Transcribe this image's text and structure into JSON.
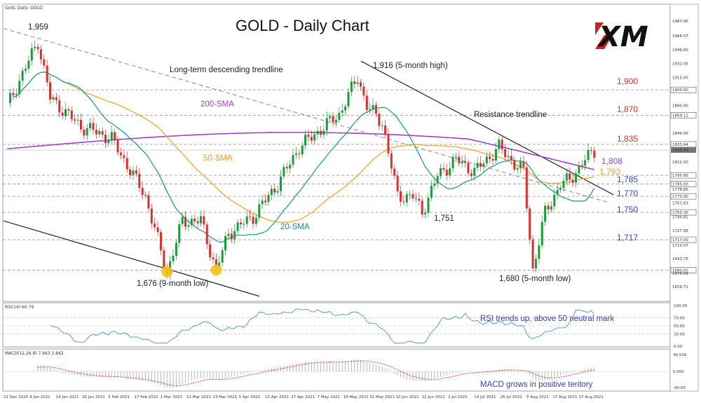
{
  "header": {
    "symbol_label": "Gold, Daily: GOLD",
    "title": "GOLD - Daily Chart",
    "logo_text": "XM"
  },
  "colors": {
    "bull": "#1d9a3c",
    "bear": "#d6312e",
    "sma20": "#2a9a96",
    "sma50": "#f0a733",
    "sma200": "#a040c8",
    "res_level": "#e0302a",
    "sup_level": "#2f47c8",
    "rsi_line": "#4a8fd8",
    "macd_hist": "#b8b8b8",
    "macd_signal": "#d63030"
  },
  "chart_data": [
    {
      "type": "candlestick",
      "title": "GOLD - Daily Chart",
      "y_ticks": [
        "1983.95",
        "1966.07",
        "1949.00",
        "1932.05",
        "1915.00",
        "1900.00",
        "1880.90",
        "1869.11",
        "1846.90",
        "1833.44",
        "1826.50",
        "1812.00",
        "1795.66",
        "1785.00",
        "1778.85",
        "1770.00",
        "1761.83",
        "1750.36",
        "1744.81",
        "1727.95",
        "1717.00",
        "1710.07",
        "1693.75",
        "1680.00",
        "1676.09",
        "1659.71"
      ],
      "ylim": [
        1646,
        1996
      ],
      "current_price_label": "1826.50",
      "x_labels": [
        "21 Dec 2020",
        "4 Jan 2021",
        "14 Jan 2021",
        "26 Jan 2021",
        "5 Feb 2021",
        "17 Feb 2021",
        "1 Mar 2021",
        "11 Mar 2021",
        "23 Mar 2021",
        "5 Apr 2021",
        "15 Apr 2021",
        "27 Apr 2021",
        "7 May 2021",
        "19 May 2021",
        "31 May 2021",
        "10 Jun 2021",
        "22 Jun 2021",
        "2 Jul 2021",
        "14 Jul 2021",
        "26 Jul 2021",
        "5 Aug 2021",
        "17 Aug 2021",
        "27 Aug 2021"
      ],
      "key_closes": [
        {
          "date": "6 Jan 2021",
          "value": 1959
        },
        {
          "date": "8 Mar 2021",
          "value": 1676
        },
        {
          "date": "31 Mar 2021",
          "value": 1680
        },
        {
          "date": "1 Jun 2021",
          "value": 1916
        },
        {
          "date": "29 Jun 2021",
          "value": 1751
        },
        {
          "date": "9 Aug 2021",
          "value": 1680
        },
        {
          "date": "31 Aug 2021",
          "value": 1826.5
        }
      ],
      "levels": [
        {
          "label": "1,900",
          "value": 1900,
          "kind": "resistance"
        },
        {
          "label": "1,870",
          "value": 1870,
          "kind": "resistance"
        },
        {
          "label": "1,835",
          "value": 1835,
          "kind": "resistance"
        },
        {
          "label": "1,808",
          "value": 1808,
          "kind": "ma"
        },
        {
          "label": "1,793",
          "value": 1793,
          "kind": "ma"
        },
        {
          "label": "1,785",
          "value": 1785,
          "kind": "support"
        },
        {
          "label": "1,770",
          "value": 1770,
          "kind": "support"
        },
        {
          "label": "1,750",
          "value": 1750,
          "kind": "support"
        },
        {
          "label": "1,717",
          "value": 1717,
          "kind": "support"
        }
      ],
      "annotations": [
        {
          "text": "1,959",
          "kind": "peak"
        },
        {
          "text": "Long-term descending trendline",
          "kind": "trendline"
        },
        {
          "text": "200-SMA",
          "kind": "ma"
        },
        {
          "text": "50-SMA",
          "kind": "ma"
        },
        {
          "text": "20-SMA",
          "kind": "ma"
        },
        {
          "text": "1,916 (5-month high)",
          "kind": "peak"
        },
        {
          "text": "Resistance trendline",
          "kind": "trendline"
        },
        {
          "text": "1,751",
          "kind": "trough"
        },
        {
          "text": "1,676 (9-month low)",
          "kind": "trough"
        },
        {
          "text": "1,680 (5-month low)",
          "kind": "trough"
        }
      ]
    },
    {
      "type": "line",
      "header": "RSI(14) 60.79",
      "y_ticks": [
        "100.00",
        "70.00",
        "50.00",
        "30.00",
        "0.00"
      ],
      "ylim": [
        0,
        100
      ],
      "annotation": "RSI trends up, above 50 neutral mark"
    },
    {
      "type": "bar",
      "header": "MACD(12,26,9) 7.663 2.842",
      "y_ticks": [
        "39.526",
        "0.000",
        "-40.00"
      ],
      "annotation": "MACD grows in positive teritory"
    }
  ]
}
